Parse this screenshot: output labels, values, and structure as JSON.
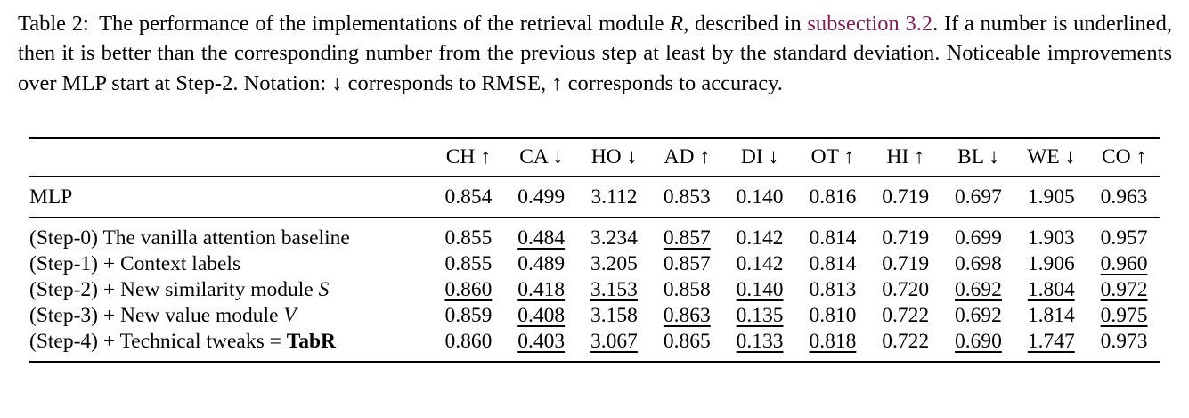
{
  "colors": {
    "link": "#7d2152",
    "rule": "#000000",
    "text": "#000000"
  },
  "caption": {
    "label": "Table 2:",
    "body_1": " The performance of the implementations of the retrieval module ",
    "math_r": "R",
    "body_2": ", described in ",
    "link_text": "subsection 3.2",
    "body_3": ". If a number is underlined, then it is better than the corresponding number from the previous step at least by the standard deviation. Noticeable improvements over MLP start at Step-2. Notation: ↓ corresponds to RMSE, ↑ corresponds to accuracy."
  },
  "table": {
    "columns": [
      {
        "label": "CH",
        "arrow": "↑"
      },
      {
        "label": "CA",
        "arrow": "↓"
      },
      {
        "label": "HO",
        "arrow": "↓"
      },
      {
        "label": "AD",
        "arrow": "↑"
      },
      {
        "label": "DI",
        "arrow": "↓"
      },
      {
        "label": "OT",
        "arrow": "↑"
      },
      {
        "label": "HI",
        "arrow": "↑"
      },
      {
        "label": "BL",
        "arrow": "↓"
      },
      {
        "label": "WE",
        "arrow": "↓"
      },
      {
        "label": "CO",
        "arrow": "↑"
      }
    ],
    "rows": [
      {
        "label": "MLP",
        "values": [
          "0.854",
          "0.499",
          "3.112",
          "0.853",
          "0.140",
          "0.816",
          "0.719",
          "0.697",
          "1.905",
          "0.963"
        ],
        "underlined": [
          false,
          false,
          false,
          false,
          false,
          false,
          false,
          false,
          false,
          false
        ]
      },
      {
        "label": "(Step-0) The vanilla attention baseline",
        "values": [
          "0.855",
          "0.484",
          "3.234",
          "0.857",
          "0.142",
          "0.814",
          "0.719",
          "0.699",
          "1.903",
          "0.957"
        ],
        "underlined": [
          false,
          true,
          false,
          true,
          false,
          false,
          false,
          false,
          false,
          false
        ]
      },
      {
        "label": "(Step-1) + Context labels",
        "values": [
          "0.855",
          "0.489",
          "3.205",
          "0.857",
          "0.142",
          "0.814",
          "0.719",
          "0.698",
          "1.906",
          "0.960"
        ],
        "underlined": [
          false,
          false,
          false,
          false,
          false,
          false,
          false,
          false,
          false,
          true
        ]
      },
      {
        "label": "(Step-2) + New similarity module ",
        "label_math": "S",
        "values": [
          "0.860",
          "0.418",
          "3.153",
          "0.858",
          "0.140",
          "0.813",
          "0.720",
          "0.692",
          "1.804",
          "0.972"
        ],
        "underlined": [
          true,
          true,
          true,
          false,
          true,
          false,
          false,
          true,
          true,
          true
        ]
      },
      {
        "label": "(Step-3) + New value module ",
        "label_math": "V",
        "values": [
          "0.859",
          "0.408",
          "3.158",
          "0.863",
          "0.135",
          "0.810",
          "0.722",
          "0.692",
          "1.814",
          "0.975"
        ],
        "underlined": [
          false,
          true,
          false,
          true,
          true,
          false,
          false,
          false,
          false,
          true
        ]
      },
      {
        "label": "(Step-4) + Technical tweaks = ",
        "label_bold": "TabR",
        "values": [
          "0.860",
          "0.403",
          "3.067",
          "0.865",
          "0.133",
          "0.818",
          "0.722",
          "0.690",
          "1.747",
          "0.973"
        ],
        "underlined": [
          false,
          true,
          true,
          false,
          true,
          true,
          false,
          true,
          true,
          false
        ]
      }
    ]
  }
}
